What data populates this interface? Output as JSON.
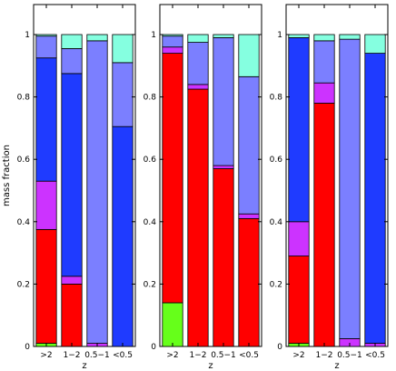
{
  "chart_data": [
    {
      "type": "bar",
      "stacked": true,
      "categories": [
        ">2",
        "1−2",
        "0.5−1",
        "<0.5"
      ],
      "xlabel": "z",
      "ylabel": "mass fraction",
      "ylim": [
        0,
        1
      ],
      "yticks": [
        0,
        0.2,
        0.4,
        0.6,
        0.8,
        1
      ],
      "segments": [
        [
          [
            "#66ff1a",
            0.01
          ],
          [
            "#ff0000",
            0.365
          ],
          [
            "#cc33ff",
            0.155
          ],
          [
            "#1f3bff",
            0.395
          ],
          [
            "#7b7fff",
            0.07
          ],
          [
            "#85ffe0",
            0.005
          ]
        ],
        [
          [
            "#66ff1a",
            0.0
          ],
          [
            "#ff0000",
            0.2
          ],
          [
            "#cc33ff",
            0.025
          ],
          [
            "#1f3bff",
            0.65
          ],
          [
            "#7b7fff",
            0.08
          ],
          [
            "#85ffe0",
            0.045
          ]
        ],
        [
          [
            "#66ff1a",
            0.0
          ],
          [
            "#ff0000",
            0.0
          ],
          [
            "#cc33ff",
            0.01
          ],
          [
            "#1f3bff",
            0.0
          ],
          [
            "#7b7fff",
            0.97
          ],
          [
            "#85ffe0",
            0.02
          ]
        ],
        [
          [
            "#66ff1a",
            0.0
          ],
          [
            "#ff0000",
            0.0
          ],
          [
            "#cc33ff",
            0.0
          ],
          [
            "#1f3bff",
            0.705
          ],
          [
            "#7b7fff",
            0.205
          ],
          [
            "#85ffe0",
            0.09
          ]
        ]
      ]
    },
    {
      "type": "bar",
      "stacked": true,
      "categories": [
        ">2",
        "1−2",
        "0.5−1",
        "<0.5"
      ],
      "xlabel": "z",
      "ylabel": "",
      "ylim": [
        0,
        1
      ],
      "yticks": [
        0,
        0.2,
        0.4,
        0.6,
        0.8,
        1
      ],
      "segments": [
        [
          [
            "#66ff1a",
            0.14
          ],
          [
            "#ff0000",
            0.8
          ],
          [
            "#cc33ff",
            0.02
          ],
          [
            "#1f3bff",
            0.0
          ],
          [
            "#7b7fff",
            0.035
          ],
          [
            "#85ffe0",
            0.005
          ]
        ],
        [
          [
            "#66ff1a",
            0.0
          ],
          [
            "#ff0000",
            0.825
          ],
          [
            "#cc33ff",
            0.015
          ],
          [
            "#1f3bff",
            0.0
          ],
          [
            "#7b7fff",
            0.135
          ],
          [
            "#85ffe0",
            0.025
          ]
        ],
        [
          [
            "#66ff1a",
            0.0
          ],
          [
            "#ff0000",
            0.57
          ],
          [
            "#cc33ff",
            0.01
          ],
          [
            "#1f3bff",
            0.0
          ],
          [
            "#7b7fff",
            0.41
          ],
          [
            "#85ffe0",
            0.01
          ]
        ],
        [
          [
            "#66ff1a",
            0.0
          ],
          [
            "#ff0000",
            0.41
          ],
          [
            "#cc33ff",
            0.015
          ],
          [
            "#1f3bff",
            0.0
          ],
          [
            "#7b7fff",
            0.44
          ],
          [
            "#85ffe0",
            0.135
          ]
        ]
      ]
    },
    {
      "type": "bar",
      "stacked": true,
      "categories": [
        ">2",
        "1−2",
        "0.5−1",
        "<0.5"
      ],
      "xlabel": "z",
      "ylabel": "",
      "ylim": [
        0,
        1
      ],
      "yticks": [
        0,
        0.2,
        0.4,
        0.6,
        0.8,
        1
      ],
      "segments": [
        [
          [
            "#66ff1a",
            0.01
          ],
          [
            "#ff0000",
            0.28
          ],
          [
            "#cc33ff",
            0.11
          ],
          [
            "#1f3bff",
            0.59
          ],
          [
            "#7b7fff",
            0.0
          ],
          [
            "#85ffe0",
            0.01
          ]
        ],
        [
          [
            "#66ff1a",
            0.0
          ],
          [
            "#ff0000",
            0.78
          ],
          [
            "#cc33ff",
            0.065
          ],
          [
            "#1f3bff",
            0.0
          ],
          [
            "#7b7fff",
            0.135
          ],
          [
            "#85ffe0",
            0.02
          ]
        ],
        [
          [
            "#66ff1a",
            0.0
          ],
          [
            "#ff0000",
            0.0
          ],
          [
            "#cc33ff",
            0.025
          ],
          [
            "#1f3bff",
            0.0
          ],
          [
            "#7b7fff",
            0.96
          ],
          [
            "#85ffe0",
            0.015
          ]
        ],
        [
          [
            "#66ff1a",
            0.0
          ],
          [
            "#ff0000",
            0.0
          ],
          [
            "#cc33ff",
            0.01
          ],
          [
            "#1f3bff",
            0.93
          ],
          [
            "#7b7fff",
            0.0
          ],
          [
            "#85ffe0",
            0.06
          ]
        ]
      ]
    }
  ]
}
